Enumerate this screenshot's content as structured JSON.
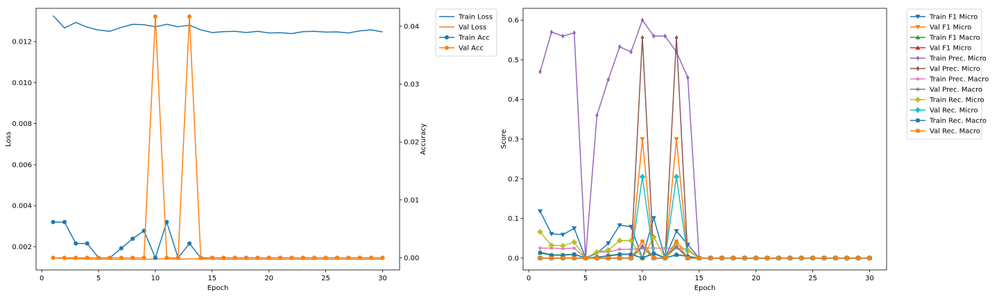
{
  "chart_data": [
    {
      "type": "line",
      "xlabel": "Epoch",
      "ylabel": "Loss",
      "y2label": "Accuracy",
      "xlim": [
        -0.5,
        31.5
      ],
      "ylim": [
        0.00087,
        0.01362
      ],
      "y2lim": [
        -0.0021,
        0.0431
      ],
      "xticks": [
        0,
        5,
        10,
        15,
        20,
        25,
        30
      ],
      "yticks": [
        0.002,
        0.004,
        0.006,
        0.008,
        0.01,
        0.012
      ],
      "ytick_labels": [
        "0.002",
        "0.004",
        "0.006",
        "0.008",
        "0.010",
        "0.012"
      ],
      "y2ticks": [
        0.0,
        0.01,
        0.02,
        0.03,
        0.04
      ],
      "y2tick_labels": [
        "0.00",
        "0.01",
        "0.02",
        "0.03",
        "0.04"
      ],
      "legend_position": "outside-top-right",
      "x": [
        1,
        2,
        3,
        4,
        5,
        6,
        7,
        8,
        9,
        10,
        11,
        12,
        13,
        14,
        15,
        16,
        17,
        18,
        19,
        20,
        21,
        22,
        23,
        24,
        25,
        26,
        27,
        28,
        29,
        30
      ],
      "series": [
        {
          "name": "Train Loss",
          "axis": "left",
          "color": "#1f77b4",
          "marker": "none",
          "values": [
            0.01326,
            0.01266,
            0.01293,
            0.0127,
            0.01256,
            0.0125,
            0.01269,
            0.01284,
            0.01282,
            0.01272,
            0.01284,
            0.01272,
            0.0128,
            0.01257,
            0.01244,
            0.01248,
            0.0125,
            0.01244,
            0.0125,
            0.01242,
            0.01243,
            0.01239,
            0.01248,
            0.0125,
            0.01246,
            0.01247,
            0.01242,
            0.01252,
            0.01257,
            0.01247
          ]
        },
        {
          "name": "Val Loss",
          "axis": "left",
          "color": "#ff7f0e",
          "marker": "none",
          "values": [
            0.00146,
            0.00142,
            0.00142,
            0.0014,
            0.00139,
            0.00139,
            0.00139,
            0.00139,
            0.00139,
            0.0014,
            0.00142,
            0.00139,
            0.00141,
            0.00141,
            0.00139,
            0.00139,
            0.00139,
            0.00139,
            0.00139,
            0.00139,
            0.00139,
            0.00139,
            0.00139,
            0.00139,
            0.00139,
            0.00139,
            0.00139,
            0.00139,
            0.00139,
            0.00139
          ]
        },
        {
          "name": "Train Acc",
          "axis": "right",
          "color": "#1f77b4",
          "marker": "circle",
          "values": [
            0.00617,
            0.00617,
            0.00247,
            0.00247,
            0,
            0,
            0.00164,
            0.00329,
            0.00466,
            0,
            0.00617,
            0,
            0.00247,
            0,
            0,
            0,
            0,
            0,
            0,
            0,
            0,
            0,
            0,
            0,
            0,
            0,
            0,
            0,
            0,
            0
          ]
        },
        {
          "name": "Val Acc",
          "axis": "right",
          "color": "#ff7f0e",
          "marker": "circle",
          "values": [
            0,
            0,
            0,
            0,
            0,
            0,
            0,
            0,
            0,
            0.04167,
            0,
            0,
            0.04167,
            0,
            0,
            0,
            0,
            0,
            0,
            0,
            0,
            0,
            0,
            0,
            0,
            0,
            0,
            0,
            0,
            0
          ]
        }
      ]
    },
    {
      "type": "line",
      "xlabel": "Epoch",
      "ylabel": "Score",
      "xlim": [
        -0.5,
        31.5
      ],
      "ylim": [
        -0.03,
        0.63
      ],
      "xticks": [
        0,
        5,
        10,
        15,
        20,
        25,
        30
      ],
      "yticks": [
        0.0,
        0.1,
        0.2,
        0.3,
        0.4,
        0.5,
        0.6
      ],
      "ytick_labels": [
        "0.0",
        "0.1",
        "0.2",
        "0.3",
        "0.4",
        "0.5",
        "0.6"
      ],
      "legend_position": "outside-top-right",
      "x": [
        1,
        2,
        3,
        4,
        5,
        6,
        7,
        8,
        9,
        10,
        11,
        12,
        13,
        14,
        15,
        16,
        17,
        18,
        19,
        20,
        21,
        22,
        23,
        24,
        25,
        26,
        27,
        28,
        29,
        30
      ],
      "series": [
        {
          "name": "Train F1 Micro",
          "color": "#1f77b4",
          "marker": "triangle-down",
          "values": [
            0.118,
            0.061,
            0.059,
            0.075,
            0,
            0.012,
            0.037,
            0.083,
            0.079,
            0,
            0.101,
            0,
            0.068,
            0.034,
            0,
            0,
            0,
            0,
            0,
            0,
            0,
            0,
            0,
            0,
            0,
            0,
            0,
            0,
            0,
            0
          ]
        },
        {
          "name": "Val F1 Micro",
          "color": "#ff7f0e",
          "marker": "triangle-down",
          "values": [
            0,
            0,
            0,
            0,
            0,
            0,
            0,
            0,
            0,
            0.3,
            0,
            0,
            0.3,
            0,
            0,
            0,
            0,
            0,
            0,
            0,
            0,
            0,
            0,
            0,
            0,
            0,
            0,
            0,
            0,
            0
          ]
        },
        {
          "name": "Train F1 Macro",
          "color": "#2ca02c",
          "marker": "triangle-up",
          "values": [
            0.015,
            0.008,
            0.008,
            0.01,
            0,
            0.002,
            0.006,
            0.01,
            0.01,
            0,
            0.013,
            0,
            0.009,
            0.004,
            0,
            0,
            0,
            0,
            0,
            0,
            0,
            0,
            0,
            0,
            0,
            0,
            0,
            0,
            0,
            0
          ]
        },
        {
          "name": "Val F1 Micro",
          "color": "#d62728",
          "marker": "triangle-up",
          "values": [
            0,
            0,
            0,
            0,
            0,
            0,
            0,
            0,
            0,
            0.03,
            0,
            0,
            0.03,
            0,
            0,
            0,
            0,
            0,
            0,
            0,
            0,
            0,
            0,
            0,
            0,
            0,
            0,
            0,
            0,
            0
          ]
        },
        {
          "name": "Train Prec. Micro",
          "color": "#9467bd",
          "marker": "diamond",
          "values": [
            0.47,
            0.57,
            0.56,
            0.568,
            0,
            0.36,
            0.45,
            0.533,
            0.52,
            0.6,
            0.56,
            0.56,
            0.52,
            0.455,
            0,
            0,
            0,
            0,
            0,
            0,
            0,
            0,
            0,
            0,
            0,
            0,
            0,
            0,
            0,
            0
          ]
        },
        {
          "name": "Val Prec. Micro",
          "color": "#8c564b",
          "marker": "diamond",
          "values": [
            0,
            0,
            0,
            0,
            0,
            0,
            0,
            0,
            0,
            0.556,
            0,
            0,
            0.556,
            0,
            0,
            0,
            0,
            0,
            0,
            0,
            0,
            0,
            0,
            0,
            0,
            0,
            0,
            0,
            0,
            0
          ]
        },
        {
          "name": "Train Prec. Macro",
          "color": "#e377c2",
          "marker": "star",
          "values": [
            0.025,
            0.025,
            0.024,
            0.025,
            0,
            0.015,
            0.015,
            0.022,
            0.022,
            0.025,
            0.025,
            0.025,
            0.025,
            0.022,
            0,
            0,
            0,
            0,
            0,
            0,
            0,
            0,
            0,
            0,
            0,
            0,
            0,
            0,
            0,
            0
          ]
        },
        {
          "name": "Val Prec. Macro",
          "color": "#7f7f7f",
          "marker": "star",
          "values": [
            0,
            0,
            0,
            0,
            0,
            0,
            0,
            0,
            0,
            0.028,
            0,
            0,
            0.028,
            0,
            0,
            0,
            0,
            0,
            0,
            0,
            0,
            0,
            0,
            0,
            0,
            0,
            0,
            0,
            0,
            0
          ]
        },
        {
          "name": "Train Rec. Micro",
          "color": "#bcbd22",
          "marker": "plus",
          "values": [
            0.066,
            0.032,
            0.031,
            0.04,
            0,
            0.015,
            0.02,
            0.044,
            0.044,
            0,
            0.053,
            0,
            0.037,
            0.018,
            0,
            0,
            0,
            0,
            0,
            0,
            0,
            0,
            0,
            0,
            0,
            0,
            0,
            0,
            0,
            0
          ]
        },
        {
          "name": "Val Rec. Micro",
          "color": "#17becf",
          "marker": "plus",
          "values": [
            0,
            0,
            0,
            0,
            0,
            0,
            0,
            0,
            0,
            0.205,
            0,
            0,
            0.205,
            0,
            0,
            0,
            0,
            0,
            0,
            0,
            0,
            0,
            0,
            0,
            0,
            0,
            0,
            0,
            0,
            0
          ]
        },
        {
          "name": "Train Rec. Macro",
          "color": "#1f77b4",
          "marker": "square",
          "values": [
            0.013,
            0.007,
            0.007,
            0.009,
            0,
            0.002,
            0.005,
            0.009,
            0.009,
            0,
            0.011,
            0,
            0.008,
            0.004,
            0,
            0,
            0,
            0,
            0,
            0,
            0,
            0,
            0,
            0,
            0,
            0,
            0,
            0,
            0,
            0
          ]
        },
        {
          "name": "Val Rec. Macro",
          "color": "#ff7f0e",
          "marker": "square",
          "values": [
            0,
            0,
            0,
            0,
            0,
            0,
            0,
            0,
            0,
            0.042,
            0,
            0,
            0.042,
            0,
            0,
            0,
            0,
            0,
            0,
            0,
            0,
            0,
            0,
            0,
            0,
            0,
            0,
            0,
            0,
            0
          ]
        }
      ]
    }
  ]
}
